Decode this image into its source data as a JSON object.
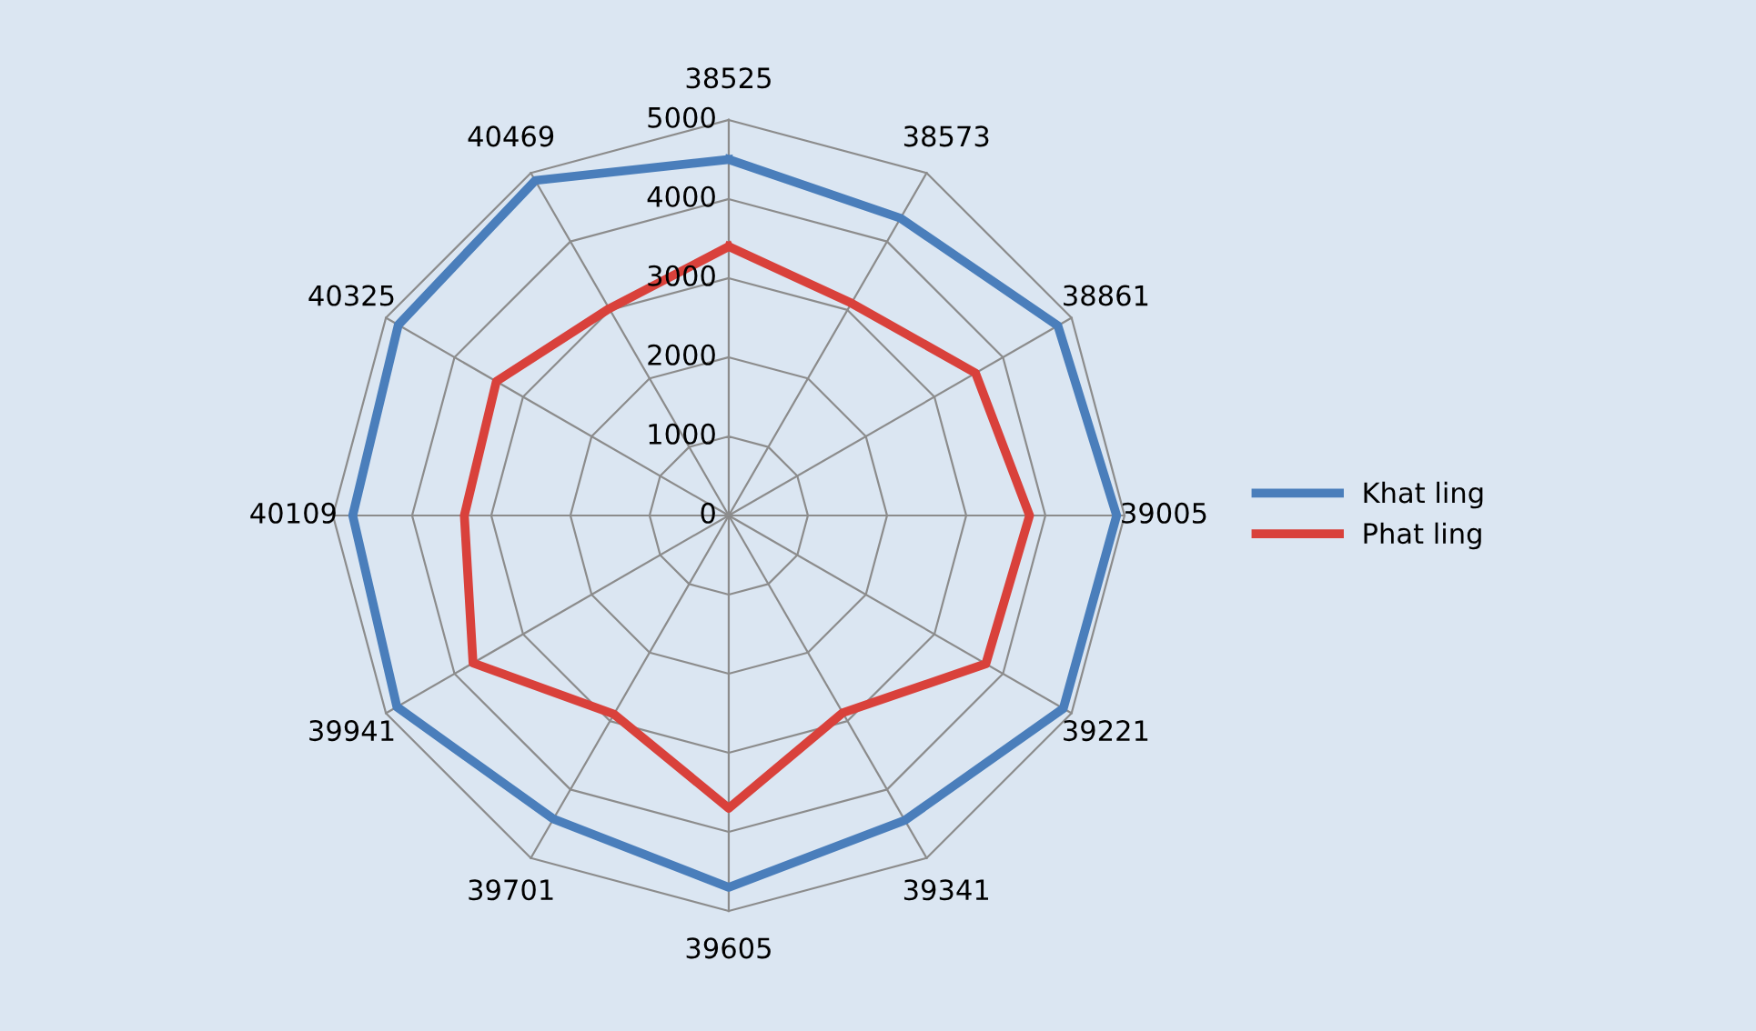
{
  "chart_data": {
    "type": "radar",
    "categories": [
      "38525",
      "38573",
      "38861",
      "39005",
      "39221",
      "39341",
      "39605",
      "39701",
      "39941",
      "40109",
      "40325",
      "40469"
    ],
    "series": [
      {
        "name": "Khat ling",
        "color": "#4a7ebb",
        "values": [
          4500,
          4340,
          4800,
          4900,
          4880,
          4450,
          4700,
          4430,
          4840,
          4750,
          4820,
          4890
        ]
      },
      {
        "name": "Phat ling",
        "color": "#d9413b",
        "values": [
          3400,
          3100,
          3600,
          3800,
          3750,
          2880,
          3700,
          2900,
          3730,
          3340,
          3390,
          3020
        ]
      }
    ],
    "ylim": [
      0,
      5000
    ],
    "yticks": [
      0,
      1000,
      2000,
      3000,
      4000,
      5000
    ],
    "grid": true,
    "legend": "right"
  }
}
